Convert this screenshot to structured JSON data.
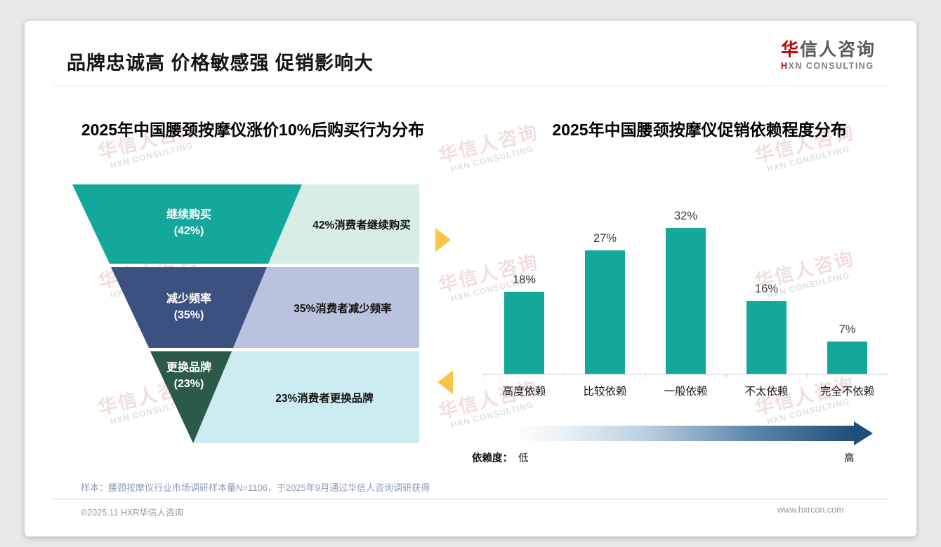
{
  "header": {
    "title": "品牌忠诚高 价格敏感强 促销影响大",
    "logo": {
      "cn_red": "华",
      "cn_rest": "信人咨询",
      "en_red": "H",
      "en_rest": "XN CONSULTING"
    }
  },
  "watermark": {
    "line1": "华信人咨询",
    "line2": "HXN CONSULTING"
  },
  "chart_data": [
    {
      "type": "funnel",
      "title": "2025年中国腰颈按摩仪涨价10%后购买行为分布",
      "categories": [
        "继续购买",
        "减少频率",
        "更换品牌"
      ],
      "values": [
        42,
        35,
        23
      ],
      "unit": "%",
      "pct_labels": [
        "(42%)",
        "(35%)",
        "(23%)"
      ],
      "annotations": [
        "42%消费者继续购买",
        "35%消费者减少频率",
        "23%消费者更换品牌"
      ],
      "segment_colors": [
        "#14A89B",
        "#3D5181",
        "#2B5A49"
      ],
      "annotation_bg_colors": [
        "#D9EDE7",
        "#B9C3DD",
        "#CBEDF2"
      ]
    },
    {
      "type": "bar",
      "title": "2025年中国腰颈按摩仪促销依赖程度分布",
      "categories": [
        "高度依赖",
        "比较依赖",
        "一般依赖",
        "不太依赖",
        "完全不依赖"
      ],
      "values": [
        18,
        27,
        32,
        16,
        7
      ],
      "unit": "%",
      "ylim": [
        0,
        35
      ],
      "grid": false,
      "data_labels": true,
      "bar_color": "#14A89B",
      "scale_legend": {
        "label": "依赖度：",
        "low": "低",
        "high": "高"
      }
    }
  ],
  "footnote": "样本：腰颈按摩仪行业市场调研样本量N=1106，于2025年9月通过华信人咨询调研获得",
  "footer": {
    "copyright": "©2025.11 HXR华信人咨询",
    "website": "www.hxrcon.com"
  },
  "colors": {
    "teal": "#14A89B",
    "navy": "#3D5181",
    "green": "#2B5A49",
    "mint": "#D9EDE7",
    "lavender": "#B9C3DD",
    "cyan": "#CBEDF2",
    "gold": "#F7C54A",
    "blue_dark": "#1F4E79",
    "logo_red": "#C00000"
  }
}
